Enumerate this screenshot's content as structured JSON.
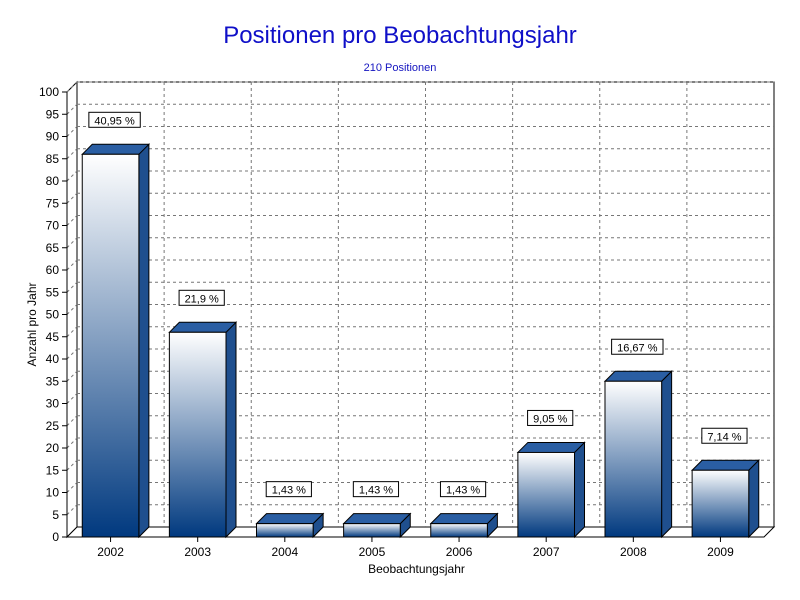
{
  "chart_data": {
    "type": "bar",
    "title": "Positionen pro Beobachtungsjahr",
    "subtitle": "210 Positionen",
    "xlabel": "Beobachtungsjahr",
    "ylabel": "Anzahl pro Jahr",
    "categories": [
      "2002",
      "2003",
      "2004",
      "2005",
      "2006",
      "2007",
      "2008",
      "2009"
    ],
    "values": [
      86,
      46,
      3,
      3,
      3,
      19,
      35,
      15
    ],
    "data_labels": [
      "40,95 %",
      "21,9 %",
      "1,43 %",
      "1,43 %",
      "1,43 %",
      "9,05 %",
      "16,67 %",
      "7,14 %"
    ],
    "ylim": [
      0,
      100
    ],
    "yticks": [
      "0",
      "5",
      "10",
      "15",
      "20",
      "25",
      "30",
      "35",
      "40",
      "45",
      "50",
      "55",
      "60",
      "65",
      "70",
      "75",
      "80",
      "85",
      "90",
      "95",
      "100"
    ],
    "grid": true,
    "legend": "none",
    "colors": {
      "bar_top": "#ffffff",
      "bar_bottom": "#00397f",
      "bar_side": "#1f4f8e",
      "bar_cap": "#2a5ea3",
      "title": "#0f0fc8"
    }
  }
}
